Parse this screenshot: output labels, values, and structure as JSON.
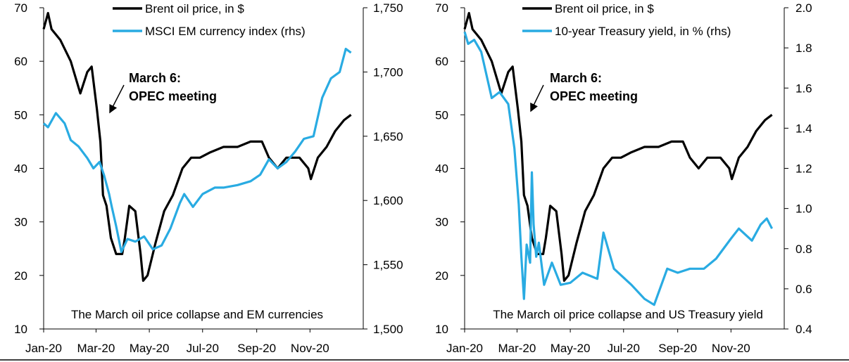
{
  "colors": {
    "oil": "#000000",
    "rhs": "#29ABE2"
  },
  "chart_data": [
    {
      "type": "line",
      "caption": "The March oil price collapse and EM currencies",
      "annotation": [
        "March 6:",
        "OPEC meeting"
      ],
      "x_ticks": [
        "Jan-20",
        "Mar-20",
        "May-20",
        "Jul-20",
        "Sep-20",
        "Nov-20"
      ],
      "y_left": {
        "lim": [
          10,
          70
        ],
        "ticks": [
          "10",
          "20",
          "30",
          "40",
          "50",
          "60",
          "70"
        ]
      },
      "y_right": {
        "lim": [
          1500,
          1750
        ],
        "ticks": [
          "1,500",
          "1,550",
          "1,600",
          "1,650",
          "1,700",
          "1,750"
        ]
      },
      "series": [
        {
          "name": "Brent oil price, in $",
          "axis": "left",
          "x": [
            "2020-01-01",
            "2020-01-06",
            "2020-01-10",
            "2020-01-20",
            "2020-02-01",
            "2020-02-12",
            "2020-02-20",
            "2020-02-25",
            "2020-03-02",
            "2020-03-06",
            "2020-03-09",
            "2020-03-13",
            "2020-03-18",
            "2020-03-24",
            "2020-03-31",
            "2020-04-03",
            "2020-04-08",
            "2020-04-15",
            "2020-04-21",
            "2020-04-24",
            "2020-04-29",
            "2020-05-08",
            "2020-05-18",
            "2020-05-28",
            "2020-06-08",
            "2020-06-18",
            "2020-06-28",
            "2020-07-10",
            "2020-07-25",
            "2020-08-10",
            "2020-08-25",
            "2020-09-07",
            "2020-09-15",
            "2020-09-25",
            "2020-10-05",
            "2020-10-12",
            "2020-10-20",
            "2020-10-30",
            "2020-11-02",
            "2020-11-10",
            "2020-11-20",
            "2020-11-30",
            "2020-12-10",
            "2020-12-18"
          ],
          "y": [
            66,
            69,
            66,
            64,
            60,
            54,
            58,
            59,
            51,
            45,
            35,
            33,
            27,
            24,
            24,
            27,
            33,
            32,
            24,
            19,
            20,
            26,
            32,
            35,
            40,
            42,
            42,
            43,
            44,
            44,
            45,
            45,
            42,
            40,
            42,
            42,
            42,
            40,
            38,
            42,
            44,
            47,
            49,
            50
          ]
        },
        {
          "name": "MSCI EM currency index (rhs)",
          "axis": "right",
          "x": [
            "2020-01-01",
            "2020-01-06",
            "2020-01-15",
            "2020-01-25",
            "2020-02-01",
            "2020-02-10",
            "2020-02-20",
            "2020-02-27",
            "2020-03-05",
            "2020-03-10",
            "2020-03-16",
            "2020-03-19",
            "2020-03-24",
            "2020-03-30",
            "2020-04-06",
            "2020-04-15",
            "2020-04-25",
            "2020-05-05",
            "2020-05-15",
            "2020-05-25",
            "2020-06-05",
            "2020-06-10",
            "2020-06-20",
            "2020-07-01",
            "2020-07-15",
            "2020-07-25",
            "2020-08-10",
            "2020-08-25",
            "2020-09-05",
            "2020-09-15",
            "2020-09-25",
            "2020-10-05",
            "2020-10-15",
            "2020-10-25",
            "2020-11-05",
            "2020-11-15",
            "2020-11-25",
            "2020-12-05",
            "2020-12-12",
            "2020-12-18"
          ],
          "y": [
            1660,
            1657,
            1668,
            1660,
            1647,
            1642,
            1633,
            1625,
            1630,
            1620,
            1605,
            1595,
            1580,
            1560,
            1570,
            1568,
            1572,
            1562,
            1565,
            1578,
            1598,
            1605,
            1595,
            1605,
            1610,
            1610,
            1612,
            1615,
            1620,
            1632,
            1625,
            1630,
            1638,
            1648,
            1650,
            1680,
            1695,
            1700,
            1718,
            1715
          ]
        }
      ]
    },
    {
      "type": "line",
      "caption": "The March oil price collapse and US Treasury yield",
      "annotation": [
        "March 6:",
        "OPEC meeting"
      ],
      "x_ticks": [
        "Jan-20",
        "Mar-20",
        "May-20",
        "Jul-20",
        "Sep-20",
        "Nov-20"
      ],
      "y_left": {
        "lim": [
          10,
          70
        ],
        "ticks": [
          "10",
          "20",
          "30",
          "40",
          "50",
          "60",
          "70"
        ]
      },
      "y_right": {
        "lim": [
          0.4,
          2.0
        ],
        "ticks": [
          "0.4",
          "0.6",
          "0.8",
          "1.0",
          "1.2",
          "1.4",
          "1.6",
          "1.8",
          "2.0"
        ]
      },
      "series": [
        {
          "name": "Brent oil price, in $",
          "axis": "left",
          "x": [
            "2020-01-01",
            "2020-01-06",
            "2020-01-10",
            "2020-01-20",
            "2020-02-01",
            "2020-02-12",
            "2020-02-20",
            "2020-02-25",
            "2020-03-02",
            "2020-03-06",
            "2020-03-09",
            "2020-03-13",
            "2020-03-18",
            "2020-03-24",
            "2020-03-31",
            "2020-04-03",
            "2020-04-08",
            "2020-04-15",
            "2020-04-21",
            "2020-04-24",
            "2020-04-29",
            "2020-05-08",
            "2020-05-18",
            "2020-05-28",
            "2020-06-08",
            "2020-06-18",
            "2020-06-28",
            "2020-07-10",
            "2020-07-25",
            "2020-08-10",
            "2020-08-25",
            "2020-09-07",
            "2020-09-15",
            "2020-09-25",
            "2020-10-05",
            "2020-10-12",
            "2020-10-20",
            "2020-10-30",
            "2020-11-02",
            "2020-11-10",
            "2020-11-20",
            "2020-11-30",
            "2020-12-10",
            "2020-12-18"
          ],
          "y": [
            66,
            69,
            66,
            64,
            60,
            54,
            58,
            59,
            51,
            45,
            35,
            33,
            27,
            24,
            24,
            27,
            33,
            32,
            24,
            19,
            20,
            26,
            32,
            35,
            40,
            42,
            42,
            43,
            44,
            44,
            45,
            45,
            42,
            40,
            42,
            42,
            42,
            40,
            38,
            42,
            44,
            47,
            49,
            50
          ]
        },
        {
          "name": "10-year Treasury yield, in % (rhs)",
          "axis": "right",
          "x": [
            "2020-01-01",
            "2020-01-05",
            "2020-01-12",
            "2020-01-20",
            "2020-02-01",
            "2020-02-10",
            "2020-02-20",
            "2020-02-27",
            "2020-03-03",
            "2020-03-06",
            "2020-03-09",
            "2020-03-12",
            "2020-03-16",
            "2020-03-18",
            "2020-03-20",
            "2020-03-23",
            "2020-03-26",
            "2020-04-01",
            "2020-04-10",
            "2020-04-20",
            "2020-05-01",
            "2020-05-15",
            "2020-06-01",
            "2020-06-08",
            "2020-06-20",
            "2020-07-10",
            "2020-07-25",
            "2020-08-05",
            "2020-08-20",
            "2020-09-01",
            "2020-09-15",
            "2020-10-01",
            "2020-10-15",
            "2020-11-01",
            "2020-11-10",
            "2020-11-25",
            "2020-12-05",
            "2020-12-12",
            "2020-12-18"
          ],
          "y": [
            1.88,
            1.82,
            1.84,
            1.78,
            1.55,
            1.58,
            1.52,
            1.3,
            1.02,
            0.76,
            0.55,
            0.82,
            0.73,
            1.18,
            0.92,
            0.76,
            0.83,
            0.62,
            0.73,
            0.62,
            0.63,
            0.68,
            0.65,
            0.88,
            0.7,
            0.62,
            0.55,
            0.52,
            0.7,
            0.68,
            0.7,
            0.7,
            0.75,
            0.85,
            0.9,
            0.84,
            0.92,
            0.95,
            0.9
          ]
        }
      ]
    }
  ]
}
